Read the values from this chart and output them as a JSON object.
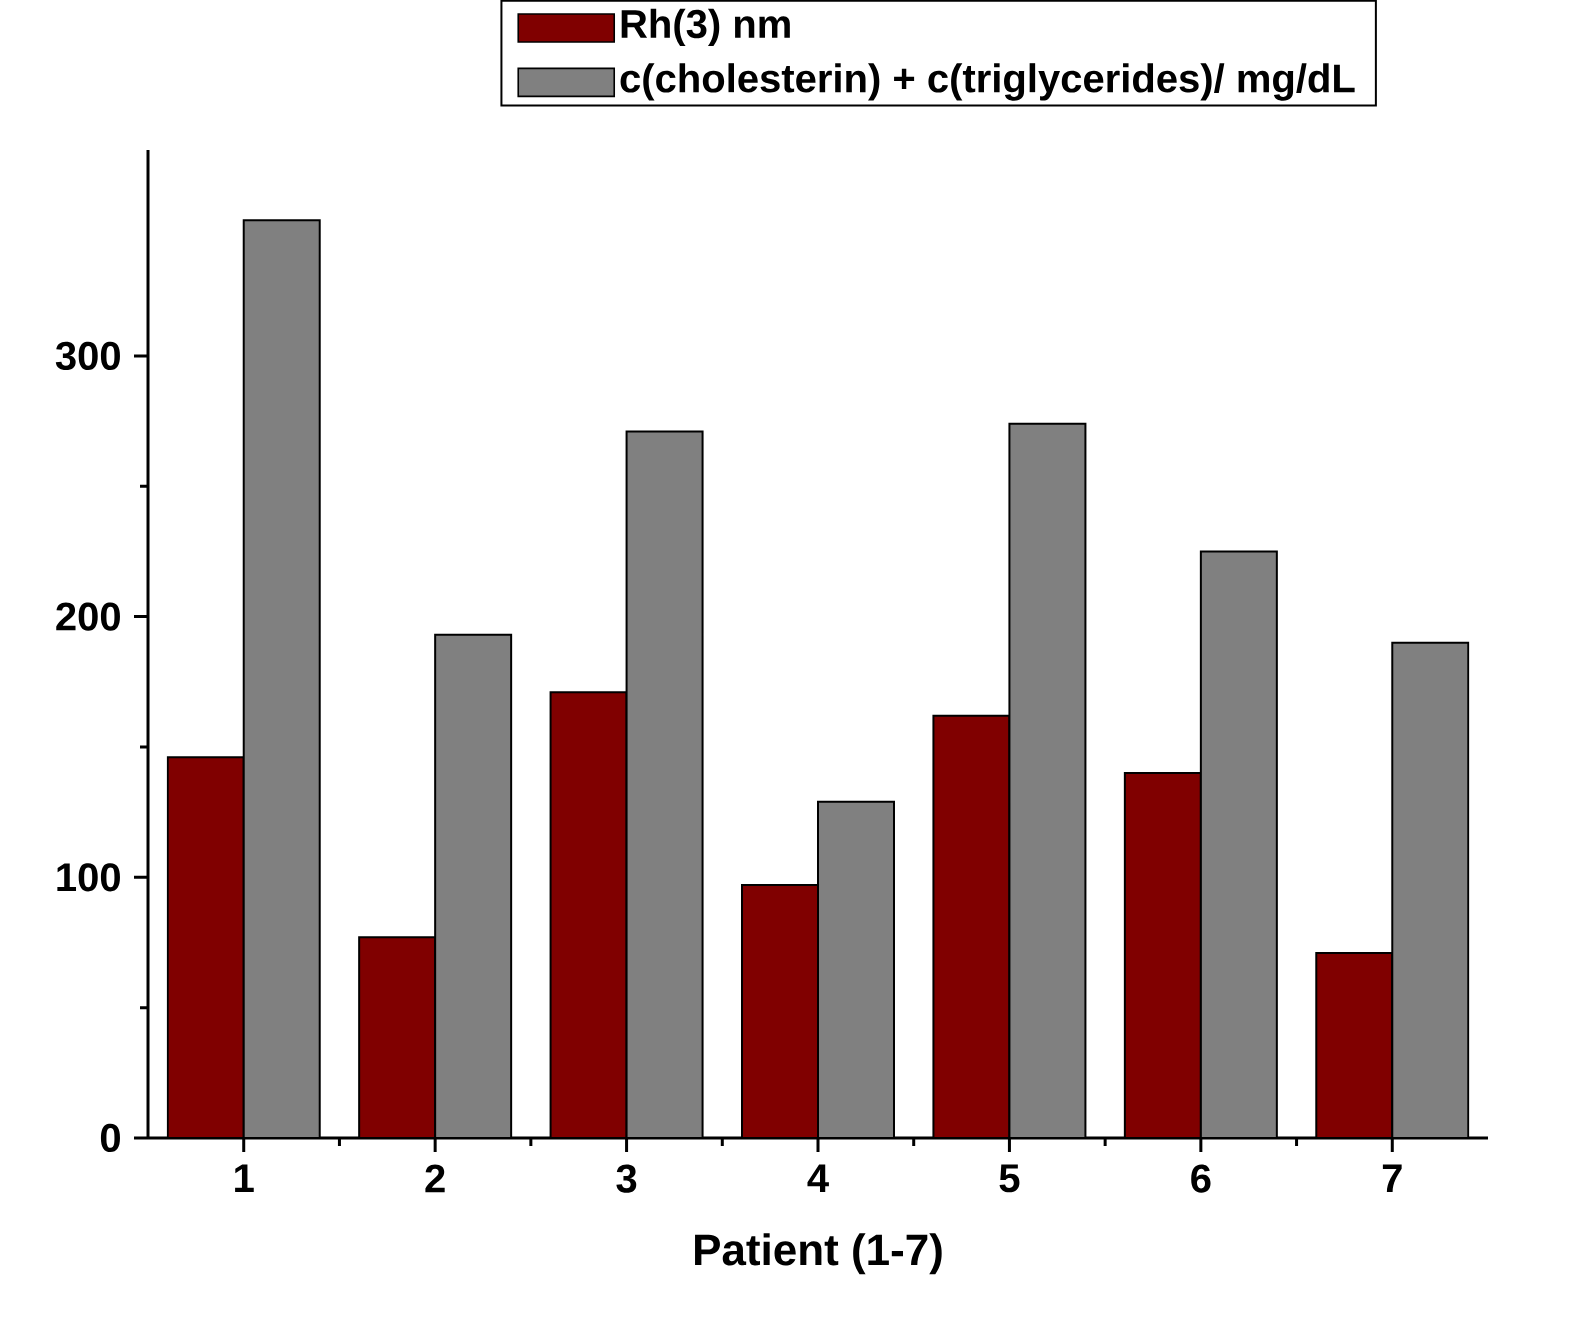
{
  "chart_data": {
    "type": "bar",
    "xlabel": "Patient (1-7)",
    "categories": [
      "1",
      "2",
      "3",
      "4",
      "5",
      "6",
      "7"
    ],
    "series": [
      {
        "name": "Rh(3) nm",
        "color": "#800000",
        "values": [
          146,
          77,
          171,
          97,
          162,
          140,
          71
        ]
      },
      {
        "name": "c(cholesterin) + c(triglycerides)/ mg/dL",
        "color": "#808080",
        "values": [
          352,
          193,
          271,
          129,
          274,
          225,
          190
        ]
      }
    ],
    "ylim": [
      0,
      379
    ],
    "yticks": [
      0,
      100,
      200,
      300
    ],
    "legend": "top"
  }
}
